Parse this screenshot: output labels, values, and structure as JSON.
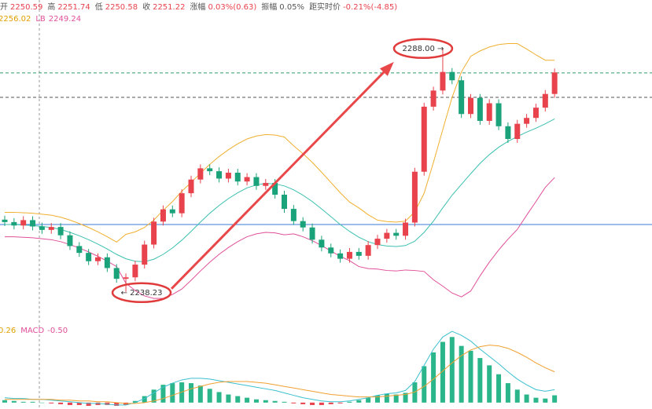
{
  "chart_data": {
    "type": "candlestick",
    "header": [
      {
        "label": "开",
        "value": "2250.59",
        "color": "#e8434d"
      },
      {
        "label": "高",
        "value": "2251.74",
        "color": "#e8434d"
      },
      {
        "label": "低",
        "value": "2250.58",
        "color": "#e8434d"
      },
      {
        "label": "收",
        "value": "2251.22",
        "color": "#e8434d"
      },
      {
        "label": "涨幅",
        "value": "0.03%(0.63)",
        "color": "#e8434d"
      },
      {
        "label": "振幅",
        "value": "0.05%",
        "color": "#555555"
      },
      {
        "label": "距实时价",
        "value": "-0.21%(-4.85)",
        "color": "#e8434d"
      }
    ],
    "band_legend": [
      {
        "label": "",
        "value": "2256.02",
        "color": "#e0a000"
      },
      {
        "label": "LB",
        "value": "2249.24",
        "color": "#e0509a"
      }
    ],
    "macd_legend": [
      {
        "label": "",
        "value": "0.26",
        "color": "#e0a000"
      },
      {
        "label": "MACD",
        "value": "-0.50",
        "color": "#e0509a"
      }
    ],
    "up_color": "#e8434d",
    "down_color": "#1aa37a",
    "ylim": [
      2233.7,
      2293.1
    ],
    "open": [
      2253.0,
      2252.5,
      2251.8,
      2252.9,
      2251.6,
      2250.9,
      2251.5,
      2249.8,
      2247.6,
      2246.2,
      2244.5,
      2245.3,
      2243.1,
      2240.9,
      2241.2,
      2243.8,
      2247.9,
      2252.6,
      2255.1,
      2254.3,
      2258.4,
      2261.2,
      2263.5,
      2262.9,
      2261.4,
      2262.6,
      2260.8,
      2261.7,
      2259.9,
      2260.5,
      2258.1,
      2255.2,
      2252.7,
      2251.4,
      2248.9,
      2247.3,
      2246.1,
      2245.0,
      2246.4,
      2245.6,
      2247.8,
      2249.1,
      2250.3,
      2249.7,
      2252.4,
      2262.8,
      2276.1,
      2279.4,
      2283.2,
      2281.5,
      2274.6,
      2277.9,
      2273.2,
      2276.8,
      2272.1,
      2269.5,
      2272.6,
      2273.8,
      2275.9,
      2278.7
    ],
    "high": [
      2253.8,
      2253.3,
      2253.7,
      2253.7,
      2252.4,
      2252.3,
      2252.3,
      2250.6,
      2248.4,
      2247.0,
      2246.1,
      2246.1,
      2243.9,
      2242.0,
      2244.6,
      2248.7,
      2253.4,
      2255.9,
      2255.9,
      2259.2,
      2262.0,
      2264.3,
      2264.3,
      2263.7,
      2263.4,
      2263.4,
      2262.5,
      2262.5,
      2261.3,
      2261.3,
      2258.9,
      2256.0,
      2253.5,
      2252.2,
      2249.7,
      2248.1,
      2246.9,
      2247.2,
      2247.2,
      2248.6,
      2249.9,
      2251.1,
      2251.1,
      2253.2,
      2263.6,
      2276.9,
      2280.2,
      2288.0,
      2284.0,
      2282.3,
      2278.7,
      2278.7,
      2277.6,
      2277.6,
      2272.9,
      2273.4,
      2274.6,
      2276.7,
      2279.5,
      2283.9
    ],
    "low": [
      2251.7,
      2251.0,
      2251.0,
      2250.8,
      2250.1,
      2250.1,
      2249.0,
      2246.8,
      2245.4,
      2243.7,
      2243.7,
      2242.3,
      2240.1,
      2238.23,
      2240.4,
      2243.0,
      2247.1,
      2251.8,
      2253.5,
      2253.5,
      2257.6,
      2260.4,
      2262.1,
      2260.6,
      2260.6,
      2260.0,
      2260.0,
      2259.1,
      2259.1,
      2257.3,
      2254.4,
      2251.9,
      2250.6,
      2248.1,
      2246.5,
      2245.3,
      2244.2,
      2244.2,
      2244.8,
      2244.8,
      2247.0,
      2248.3,
      2248.9,
      2248.9,
      2251.6,
      2262.0,
      2275.3,
      2278.6,
      2280.7,
      2273.8,
      2273.8,
      2272.4,
      2272.4,
      2271.3,
      2268.7,
      2268.7,
      2271.8,
      2273.0,
      2275.1,
      2277.9
    ],
    "close": [
      2252.5,
      2251.8,
      2252.9,
      2251.6,
      2250.9,
      2251.5,
      2249.8,
      2247.6,
      2246.2,
      2244.5,
      2245.3,
      2243.1,
      2240.9,
      2241.2,
      2243.8,
      2247.9,
      2252.6,
      2255.1,
      2254.3,
      2258.4,
      2261.2,
      2263.5,
      2262.9,
      2261.4,
      2262.6,
      2260.8,
      2261.7,
      2259.9,
      2260.5,
      2258.1,
      2255.2,
      2252.7,
      2251.4,
      2248.9,
      2247.3,
      2246.1,
      2245.0,
      2246.4,
      2245.6,
      2247.8,
      2249.1,
      2250.3,
      2249.7,
      2252.4,
      2262.8,
      2276.1,
      2279.4,
      2283.2,
      2281.5,
      2274.6,
      2277.9,
      2273.2,
      2276.8,
      2272.1,
      2269.5,
      2272.6,
      2273.8,
      2275.9,
      2278.7,
      2283.1
    ],
    "bands": [
      {
        "color": "#f0b030",
        "values": [
          2254.5,
          2254.5,
          2254.4,
          2254.3,
          2254.1,
          2253.9,
          2253.5,
          2252.9,
          2252.2,
          2251.4,
          2250.5,
          2249.5,
          2248.4,
          2250.0,
          2250.5,
          2251.4,
          2252.9,
          2254.9,
          2256.7,
          2258.8,
          2260.6,
          2262.5,
          2264.3,
          2265.9,
          2267.3,
          2268.5,
          2269.5,
          2270.1,
          2270.4,
          2270.3,
          2269.9,
          2268.1,
          2266.5,
          2264.7,
          2262.7,
          2260.6,
          2258.5,
          2256.6,
          2255.4,
          2254.0,
          2252.9,
          2252.6,
          2252.5,
          2252.7,
          2254.6,
          2258.4,
          2264.7,
          2271.4,
          2278.0,
          2283.2,
          2286.4,
          2287.5,
          2288.3,
          2288.8,
          2289.0,
          2289.0,
          2287.9,
          2286.7,
          2285.6,
          2285.6
        ]
      },
      {
        "color": "#3cc0b0",
        "values": [
          2252.0,
          2252.0,
          2251.9,
          2251.8,
          2251.6,
          2251.4,
          2251.0,
          2250.4,
          2249.7,
          2248.9,
          2248.0,
          2247.0,
          2245.9,
          2245.0,
          2244.5,
          2244.4,
          2244.9,
          2245.9,
          2247.2,
          2248.8,
          2250.6,
          2252.5,
          2254.3,
          2255.9,
          2257.3,
          2258.5,
          2259.5,
          2260.1,
          2260.4,
          2260.3,
          2259.9,
          2259.1,
          2258.0,
          2256.7,
          2255.2,
          2253.6,
          2252.0,
          2250.6,
          2249.4,
          2248.5,
          2247.9,
          2247.6,
          2247.5,
          2247.7,
          2248.6,
          2250.4,
          2252.7,
          2255.4,
          2258.0,
          2260.2,
          2262.4,
          2264.5,
          2266.3,
          2267.8,
          2269.0,
          2270.0,
          2270.9,
          2271.7,
          2272.6,
          2273.6
        ]
      },
      {
        "color": "#e0509a",
        "values": [
          2249.5,
          2249.5,
          2249.4,
          2249.3,
          2249.1,
          2248.9,
          2248.5,
          2247.9,
          2247.2,
          2246.4,
          2245.5,
          2244.5,
          2243.4,
          2240.0,
          2238.5,
          2237.4,
          2236.9,
          2236.9,
          2237.7,
          2238.8,
          2240.6,
          2242.5,
          2244.3,
          2245.9,
          2247.3,
          2248.5,
          2249.5,
          2250.1,
          2250.4,
          2250.3,
          2249.9,
          2250.1,
          2249.5,
          2248.7,
          2247.7,
          2246.6,
          2245.5,
          2244.6,
          2243.4,
          2243.0,
          2242.9,
          2242.6,
          2242.5,
          2242.7,
          2242.6,
          2242.4,
          2240.7,
          2239.4,
          2238.0,
          2237.2,
          2238.4,
          2241.5,
          2244.3,
          2246.8,
          2249.0,
          2251.0,
          2253.9,
          2256.7,
          2259.6,
          2261.6
        ]
      }
    ],
    "levels": [
      {
        "value": 2283.0,
        "color": "#2e9e6a",
        "dashed": true
      },
      {
        "value": 2278.0,
        "color": "#555555",
        "dashed": true
      },
      {
        "value": 2252.0,
        "color": "#3a78d8",
        "dashed": false
      }
    ],
    "annotations": [
      {
        "value": 2238.23,
        "label": "← 2238.23"
      },
      {
        "value": 2288.0,
        "label": "2288.00 →"
      }
    ],
    "macd_ylim": [
      -0.5,
      9
    ],
    "macd_hist": [
      0.3,
      0.2,
      0.1,
      0.1,
      0.0,
      -0.1,
      -0.2,
      -0.3,
      -0.3,
      -0.4,
      -0.3,
      -0.3,
      -0.4,
      -0.3,
      0.2,
      0.8,
      1.6,
      2.2,
      2.4,
      2.5,
      2.4,
      2.1,
      1.7,
      1.3,
      1.0,
      0.8,
      0.6,
      0.4,
      0.3,
      0.2,
      0.1,
      -0.1,
      -0.2,
      -0.3,
      -0.3,
      -0.2,
      -0.1,
      0.1,
      0.3,
      0.6,
      0.9,
      1.1,
      1.0,
      1.2,
      2.5,
      4.5,
      6.2,
      7.5,
      8.1,
      7.0,
      6.4,
      5.5,
      4.6,
      3.5,
      2.4,
      1.6,
      1.0,
      0.6,
      0.5,
      0.9
    ],
    "macd_lines": [
      {
        "color": "#3cc0d0",
        "values": [
          0.6,
          0.5,
          0.5,
          0.4,
          0.4,
          0.3,
          0.2,
          0.1,
          0.0,
          -0.1,
          -0.1,
          -0.2,
          -0.3,
          -0.3,
          0.0,
          0.5,
          1.2,
          1.9,
          2.4,
          2.8,
          3.0,
          3.0,
          2.9,
          2.7,
          2.5,
          2.3,
          2.1,
          1.9,
          1.7,
          1.5,
          1.2,
          0.9,
          0.6,
          0.4,
          0.2,
          0.1,
          0.1,
          0.2,
          0.4,
          0.6,
          0.9,
          1.1,
          1.2,
          1.5,
          2.6,
          4.6,
          6.6,
          8.1,
          8.8,
          8.3,
          7.6,
          6.6,
          5.7,
          4.8,
          3.8,
          2.9,
          2.2,
          1.6,
          1.4,
          1.6
        ]
      },
      {
        "color": "#f0a030",
        "values": [
          0.4,
          0.4,
          0.4,
          0.4,
          0.4,
          0.4,
          0.3,
          0.3,
          0.2,
          0.2,
          0.1,
          0.1,
          0.0,
          -0.1,
          -0.1,
          0.0,
          0.2,
          0.5,
          0.9,
          1.3,
          1.7,
          2.0,
          2.3,
          2.5,
          2.6,
          2.6,
          2.6,
          2.5,
          2.4,
          2.2,
          2.0,
          1.8,
          1.6,
          1.4,
          1.2,
          1.0,
          0.9,
          0.8,
          0.7,
          0.7,
          0.7,
          0.8,
          0.9,
          1.0,
          1.3,
          2.0,
          2.9,
          3.9,
          4.9,
          5.8,
          6.5,
          6.9,
          7.1,
          7.0,
          6.7,
          6.2,
          5.6,
          4.9,
          4.3,
          3.8
        ]
      }
    ]
  }
}
